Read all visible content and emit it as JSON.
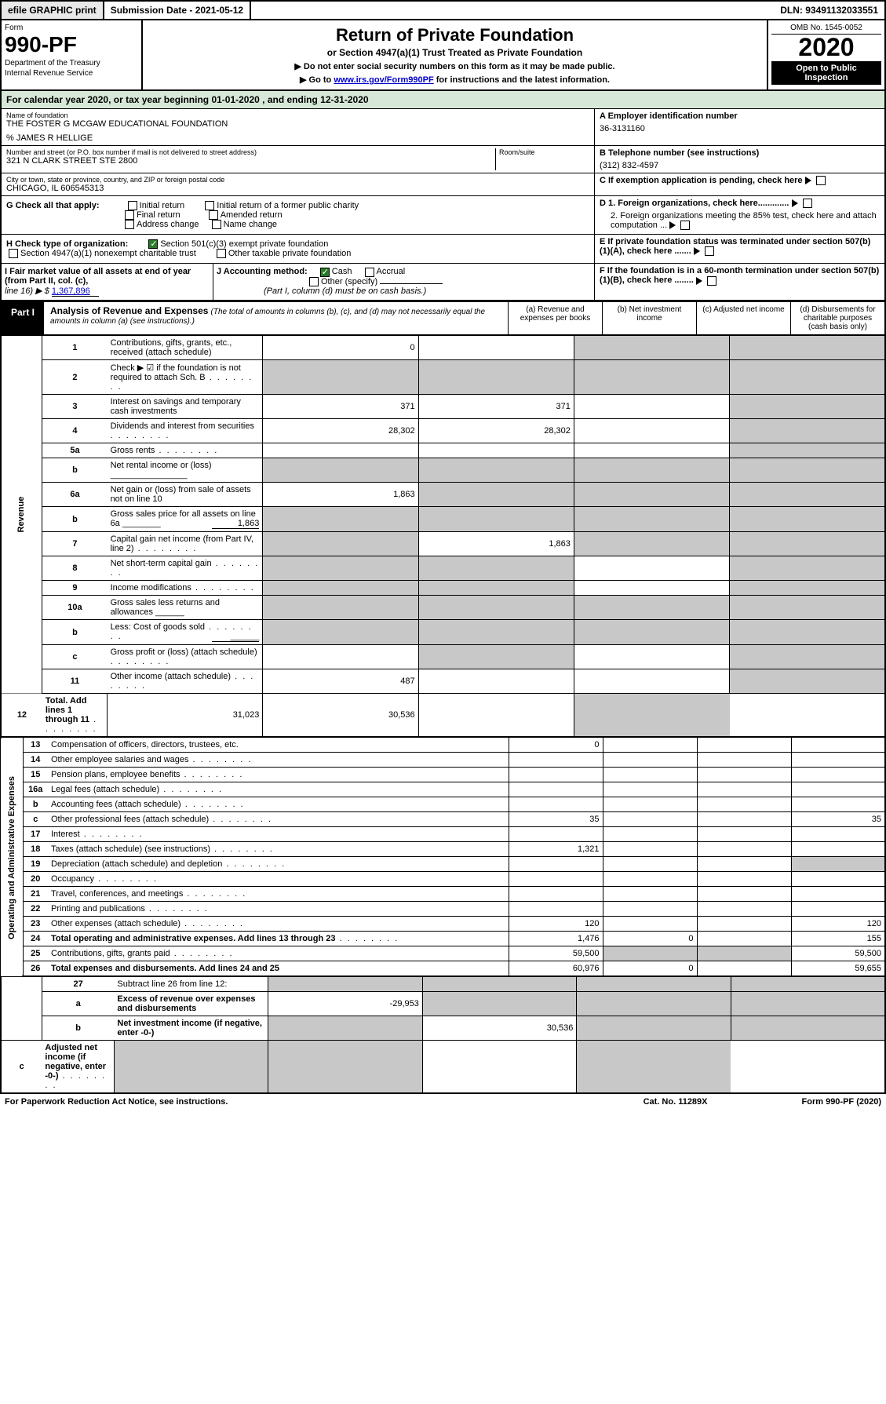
{
  "top": {
    "efile": "efile GRAPHIC print",
    "sub_label": "Submission Date - 2021-05-12",
    "dln": "DLN: 93491132033551"
  },
  "hdr": {
    "form": "Form",
    "num": "990-PF",
    "dept": "Department of the Treasury",
    "irs": "Internal Revenue Service",
    "title": "Return of Private Foundation",
    "sub": "or Section 4947(a)(1) Trust Treated as Private Foundation",
    "note1": "▶ Do not enter social security numbers on this form as it may be made public.",
    "note2": "▶ Go to ",
    "link": "www.irs.gov/Form990PF",
    "note3": " for instructions and the latest information.",
    "omb": "OMB No. 1545-0052",
    "year": "2020",
    "open": "Open to Public Inspection"
  },
  "cal": "For calendar year 2020, or tax year beginning 01-01-2020                         , and ending 12-31-2020",
  "name_lbl": "Name of foundation",
  "name": "THE FOSTER G MCGAW EDUCATIONAL FOUNDATION",
  "care": "% JAMES R HELLIGE",
  "addr_lbl": "Number and street (or P.O. box number if mail is not delivered to street address)",
  "addr": "321 N CLARK STREET STE 2800",
  "room_lbl": "Room/suite",
  "city_lbl": "City or town, state or province, country, and ZIP or foreign postal code",
  "city": "CHICAGO, IL  606545313",
  "a_lbl": "A Employer identification number",
  "a_val": "36-3131160",
  "b_lbl": "B Telephone number (see instructions)",
  "b_val": "(312) 832-4597",
  "c_lbl": "C If exemption application is pending, check here",
  "d1": "D 1. Foreign organizations, check here.............",
  "d2": "2. Foreign organizations meeting the 85% test, check here and attach computation ...",
  "e_lbl": "E  If private foundation status was terminated under section 507(b)(1)(A), check here .......",
  "f_lbl": "F  If the foundation is in a 60-month termination under section 507(b)(1)(B), check here ........",
  "g_lbl": "G Check all that apply:",
  "g_opts": [
    "Initial return",
    "Initial return of a former public charity",
    "Final return",
    "Amended return",
    "Address change",
    "Name change"
  ],
  "h_lbl": "H Check type of organization:",
  "h1": "Section 501(c)(3) exempt private foundation",
  "h2": "Section 4947(a)(1) nonexempt charitable trust",
  "h3": "Other taxable private foundation",
  "i_lbl": "I Fair market value of all assets at end of year (from Part II, col. (c),",
  "i_line": "line 16) ▶ $  ",
  "i_val": "1,367,896",
  "j_lbl": "J Accounting method:",
  "j_cash": "Cash",
  "j_acc": "Accrual",
  "j_other": "Other (specify)",
  "j_note": "(Part I, column (d) must be on cash basis.)",
  "part1_lbl": "Part I",
  "part1_title": "Analysis of Revenue and Expenses",
  "part1_sub": "(The total of amounts in columns (b), (c), and (d) may not necessarily equal the amounts in column (a) (see instructions).)",
  "cols": {
    "a": "(a)    Revenue and expenses per books",
    "b": "(b)   Net investment income",
    "c": "(c)   Adjusted net income",
    "d": "(d)   Disbursements for charitable purposes (cash basis only)"
  },
  "side_rev": "Revenue",
  "side_exp": "Operating and Administrative Expenses",
  "rows": [
    {
      "n": "1",
      "d": "Contributions, gifts, grants, etc., received (attach schedule)",
      "a": "0",
      "b": "",
      "c": "g",
      "dd": "g"
    },
    {
      "n": "2",
      "d": "Check ▶ ☑ if the foundation is not required to attach Sch. B",
      "dots": 1,
      "a": "g",
      "b": "g",
      "c": "g",
      "dd": "g"
    },
    {
      "n": "3",
      "d": "Interest on savings and temporary cash investments",
      "a": "371",
      "b": "371",
      "c": "",
      "dd": "g"
    },
    {
      "n": "4",
      "d": "Dividends and interest from securities",
      "dots": 1,
      "a": "28,302",
      "b": "28,302",
      "c": "",
      "dd": "g"
    },
    {
      "n": "5a",
      "d": "Gross rents",
      "dots": 1,
      "a": "",
      "b": "",
      "c": "",
      "dd": "g"
    },
    {
      "n": "b",
      "d": "Net rental income or (loss)   ________________",
      "a": "g",
      "b": "g",
      "c": "g",
      "dd": "g"
    },
    {
      "n": "6a",
      "d": "Net gain or (loss) from sale of assets not on line 10",
      "a": "1,863",
      "b": "g",
      "c": "g",
      "dd": "g"
    },
    {
      "n": "b",
      "d": "Gross sales price for all assets on line 6a ________",
      "v": "1,863",
      "a": "g",
      "b": "g",
      "c": "g",
      "dd": "g"
    },
    {
      "n": "7",
      "d": "Capital gain net income (from Part IV, line 2)",
      "dots": 1,
      "a": "g",
      "b": "1,863",
      "c": "g",
      "dd": "g"
    },
    {
      "n": "8",
      "d": "Net short-term capital gain",
      "dots": 1,
      "a": "g",
      "b": "g",
      "c": "",
      "dd": "g"
    },
    {
      "n": "9",
      "d": "Income modifications",
      "dots": 1,
      "a": "g",
      "b": "g",
      "c": "",
      "dd": "g"
    },
    {
      "n": "10a",
      "d": "Gross sales less returns and allowances   ______",
      "a": "g",
      "b": "g",
      "c": "g",
      "dd": "g"
    },
    {
      "n": "b",
      "d": "Less: Cost of goods sold",
      "dots": 1,
      "v": "______",
      "a": "g",
      "b": "g",
      "c": "g",
      "dd": "g"
    },
    {
      "n": "c",
      "d": "Gross profit or (loss) (attach schedule)",
      "dots": 1,
      "a": "",
      "b": "g",
      "c": "",
      "dd": "g"
    },
    {
      "n": "11",
      "d": "Other income (attach schedule)",
      "dots": 1,
      "a": "487",
      "b": "",
      "c": "",
      "dd": "g"
    },
    {
      "n": "12",
      "d": "Total. Add lines 1 through 11",
      "dots": 1,
      "bold": 1,
      "a": "31,023",
      "b": "30,536",
      "c": "",
      "dd": "g"
    }
  ],
  "exp_rows": [
    {
      "n": "13",
      "d": "Compensation of officers, directors, trustees, etc.",
      "a": "0",
      "b": "",
      "c": "",
      "dd": ""
    },
    {
      "n": "14",
      "d": "Other employee salaries and wages",
      "dots": 1,
      "a": "",
      "b": "",
      "c": "",
      "dd": ""
    },
    {
      "n": "15",
      "d": "Pension plans, employee benefits",
      "dots": 1,
      "a": "",
      "b": "",
      "c": "",
      "dd": ""
    },
    {
      "n": "16a",
      "d": "Legal fees (attach schedule)",
      "dots": 1,
      "a": "",
      "b": "",
      "c": "",
      "dd": ""
    },
    {
      "n": "b",
      "d": "Accounting fees (attach schedule)",
      "dots": 1,
      "a": "",
      "b": "",
      "c": "",
      "dd": ""
    },
    {
      "n": "c",
      "d": "Other professional fees (attach schedule)",
      "dots": 1,
      "a": "35",
      "b": "",
      "c": "",
      "dd": "35"
    },
    {
      "n": "17",
      "d": "Interest",
      "dots": 1,
      "a": "",
      "b": "",
      "c": "",
      "dd": ""
    },
    {
      "n": "18",
      "d": "Taxes (attach schedule) (see instructions)",
      "dots": 1,
      "a": "1,321",
      "b": "",
      "c": "",
      "dd": ""
    },
    {
      "n": "19",
      "d": "Depreciation (attach schedule) and depletion",
      "dots": 1,
      "a": "",
      "b": "",
      "c": "",
      "dd": "g"
    },
    {
      "n": "20",
      "d": "Occupancy",
      "dots": 1,
      "a": "",
      "b": "",
      "c": "",
      "dd": ""
    },
    {
      "n": "21",
      "d": "Travel, conferences, and meetings",
      "dots": 1,
      "a": "",
      "b": "",
      "c": "",
      "dd": ""
    },
    {
      "n": "22",
      "d": "Printing and publications",
      "dots": 1,
      "a": "",
      "b": "",
      "c": "",
      "dd": ""
    },
    {
      "n": "23",
      "d": "Other expenses (attach schedule)",
      "dots": 1,
      "a": "120",
      "b": "",
      "c": "",
      "dd": "120"
    },
    {
      "n": "24",
      "d": "Total operating and administrative expenses. Add lines 13 through 23",
      "dots": 1,
      "bold": 1,
      "a": "1,476",
      "b": "0",
      "c": "",
      "dd": "155"
    },
    {
      "n": "25",
      "d": "Contributions, gifts, grants paid",
      "dots": 1,
      "a": "59,500",
      "b": "g",
      "c": "g",
      "dd": "59,500"
    },
    {
      "n": "26",
      "d": "Total expenses and disbursements. Add lines 24 and 25",
      "bold": 1,
      "a": "60,976",
      "b": "0",
      "c": "",
      "dd": "59,655"
    }
  ],
  "sub_rows": [
    {
      "n": "27",
      "d": "Subtract line 26 from line 12:",
      "a": "g",
      "b": "g",
      "c": "g",
      "dd": "g"
    },
    {
      "n": "a",
      "d": "Excess of revenue over expenses and disbursements",
      "bold": 1,
      "a": "-29,953",
      "b": "g",
      "c": "g",
      "dd": "g"
    },
    {
      "n": "b",
      "d": "Net investment income (if negative, enter -0-)",
      "bold": 1,
      "a": "g",
      "b": "30,536",
      "c": "g",
      "dd": "g"
    },
    {
      "n": "c",
      "d": "Adjusted net income (if negative, enter -0-)",
      "dots": 1,
      "bold": 1,
      "a": "g",
      "b": "g",
      "c": "",
      "dd": "g"
    }
  ],
  "foot": {
    "l": "For Paperwork Reduction Act Notice, see instructions.",
    "c": "Cat. No. 11289X",
    "r": "Form 990-PF (2020)"
  }
}
